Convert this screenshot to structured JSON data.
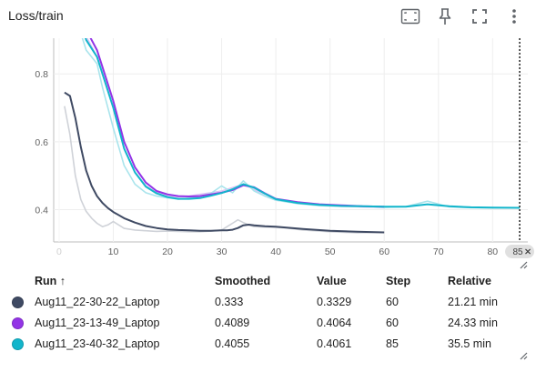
{
  "card": {
    "title": "Loss/train"
  },
  "toolbar": {
    "icons": [
      "fit-domain-icon",
      "pin-icon",
      "fullscreen-icon",
      "more-vert-icon"
    ]
  },
  "chart_data": {
    "type": "line",
    "title": "Loss/train",
    "xlabel": "",
    "ylabel": "",
    "xlim": [
      -1,
      86.5
    ],
    "ylim": [
      0.305,
      0.905
    ],
    "x_ticks": [
      0,
      10,
      20,
      30,
      40,
      50,
      60,
      70,
      80
    ],
    "y_ticks": [
      0.4,
      0.6,
      0.8
    ],
    "y_tick_labels": [
      "0.4",
      "0.6",
      "0.8"
    ],
    "grid": true,
    "hover_step": 85,
    "hover_step_label": "85",
    "series": [
      {
        "run": "Aug11_22-30-22_Laptop",
        "color": "#3f4a63",
        "raw_color": "#cfd2d8",
        "x": [
          1,
          2,
          3,
          4,
          5,
          6,
          7,
          8,
          9,
          10,
          12,
          14,
          16,
          18,
          20,
          22,
          24,
          26,
          28,
          30,
          31,
          32,
          33,
          34,
          35,
          36,
          38,
          40,
          42,
          45,
          50,
          55,
          60
        ],
        "smoothed": [
          0.745,
          0.735,
          0.67,
          0.585,
          0.515,
          0.47,
          0.44,
          0.42,
          0.405,
          0.393,
          0.375,
          0.362,
          0.352,
          0.346,
          0.342,
          0.34,
          0.339,
          0.338,
          0.338,
          0.339,
          0.339,
          0.341,
          0.346,
          0.354,
          0.356,
          0.354,
          0.351,
          0.35,
          0.347,
          0.343,
          0.338,
          0.335,
          0.333
        ],
        "raw": [
          0.705,
          0.62,
          0.5,
          0.43,
          0.395,
          0.375,
          0.36,
          0.35,
          0.355,
          0.365,
          0.345,
          0.34,
          0.338,
          0.336,
          0.337,
          0.336,
          0.335,
          0.335,
          0.337,
          0.34,
          0.35,
          0.36,
          0.37,
          0.362,
          0.355,
          0.35,
          0.349,
          0.348,
          0.346,
          0.34,
          0.335,
          0.332,
          0.333
        ]
      },
      {
        "run": "Aug11_23-13-49_Laptop",
        "color": "#9334e6",
        "raw_color": "#dcc3f5",
        "x": [
          1,
          3,
          5,
          7,
          8,
          10,
          12,
          14,
          16,
          18,
          20,
          22,
          24,
          26,
          28,
          30,
          32,
          34,
          36,
          38,
          40,
          44,
          48,
          52,
          56,
          60
        ],
        "smoothed": [
          1.3,
          1.05,
          0.93,
          0.87,
          0.82,
          0.72,
          0.6,
          0.525,
          0.48,
          0.455,
          0.445,
          0.44,
          0.439,
          0.44,
          0.445,
          0.45,
          0.458,
          0.472,
          0.466,
          0.448,
          0.432,
          0.422,
          0.416,
          0.413,
          0.41,
          0.4089
        ],
        "raw": [
          1.3,
          1.03,
          0.91,
          0.85,
          0.8,
          0.7,
          0.58,
          0.51,
          0.47,
          0.45,
          0.442,
          0.438,
          0.44,
          0.445,
          0.45,
          0.455,
          0.465,
          0.475,
          0.46,
          0.44,
          0.428,
          0.42,
          0.413,
          0.41,
          0.408,
          0.4064
        ]
      },
      {
        "run": "Aug11_23-40-32_Laptop",
        "color": "#12b5cb",
        "raw_color": "#a9e4ec",
        "x": [
          1,
          3,
          5,
          7,
          8,
          10,
          12,
          14,
          16,
          18,
          20,
          22,
          24,
          26,
          28,
          30,
          32,
          34,
          36,
          38,
          40,
          44,
          48,
          52,
          56,
          60,
          64,
          68,
          72,
          76,
          80,
          85
        ],
        "smoothed": [
          1.25,
          1.0,
          0.9,
          0.85,
          0.8,
          0.7,
          0.58,
          0.51,
          0.468,
          0.448,
          0.437,
          0.432,
          0.432,
          0.434,
          0.441,
          0.449,
          0.46,
          0.475,
          0.465,
          0.447,
          0.431,
          0.42,
          0.414,
          0.411,
          0.41,
          0.409,
          0.409,
          0.416,
          0.41,
          0.407,
          0.406,
          0.4055
        ],
        "raw": [
          1.2,
          0.97,
          0.87,
          0.83,
          0.76,
          0.64,
          0.53,
          0.475,
          0.45,
          0.44,
          0.435,
          0.431,
          0.434,
          0.44,
          0.448,
          0.47,
          0.45,
          0.485,
          0.455,
          0.44,
          0.428,
          0.418,
          0.412,
          0.41,
          0.41,
          0.407,
          0.409,
          0.425,
          0.408,
          0.406,
          0.405,
          0.4061
        ]
      }
    ]
  },
  "legend": {
    "headers": {
      "run": "Run ↑",
      "smoothed": "Smoothed",
      "value": "Value",
      "step": "Step",
      "relative": "Relative"
    },
    "rows": [
      {
        "color": "#3f4a63",
        "run": "Aug11_22-30-22_Laptop",
        "smoothed": "0.333",
        "value": "0.3329",
        "step": "60",
        "relative": "21.21 min"
      },
      {
        "color": "#9334e6",
        "run": "Aug11_23-13-49_Laptop",
        "smoothed": "0.4089",
        "value": "0.4064",
        "step": "60",
        "relative": "24.33 min"
      },
      {
        "color": "#12b5cb",
        "run": "Aug11_23-40-32_Laptop",
        "smoothed": "0.4055",
        "value": "0.4061",
        "step": "85",
        "relative": "35.5 min"
      }
    ]
  }
}
